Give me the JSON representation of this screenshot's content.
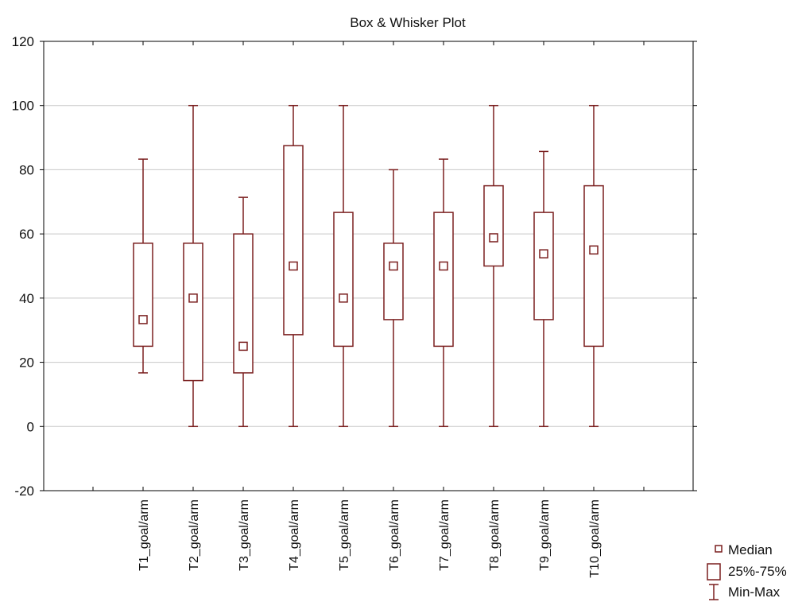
{
  "chart_data": {
    "type": "boxplot",
    "title": "Box & Whisker Plot",
    "xlabel": "",
    "ylabel": "",
    "ylim": [
      -20,
      120
    ],
    "yticks": [
      -20,
      0,
      20,
      40,
      60,
      80,
      100,
      120
    ],
    "grid": true,
    "legend_position": "bottom-right",
    "colors": {
      "box": "#7a1f1f",
      "grid": "#c8c8c8",
      "axis": "#000000"
    },
    "categories": [
      "T1_goal/arm",
      "T2_goal/arm",
      "T3_goal/arm",
      "T4_goal/arm",
      "T5_goal/arm",
      "T6_goal/arm",
      "T7_goal/arm",
      "T8_goal/arm",
      "T9_goal/arm",
      "T10_goal/arm"
    ],
    "series": [
      {
        "median": [
          33.3,
          40,
          25,
          50,
          40,
          50,
          50,
          58.8,
          53.8,
          55
        ],
        "q1": [
          25,
          14.3,
          16.7,
          28.6,
          25,
          33.3,
          25,
          50,
          33.3,
          25
        ],
        "q3": [
          57.1,
          57.1,
          60,
          87.5,
          66.7,
          57.1,
          66.7,
          75,
          66.7,
          75
        ],
        "min": [
          16.7,
          0,
          0,
          0,
          0,
          0,
          0,
          0,
          0,
          0
        ],
        "max": [
          83.3,
          100,
          71.4,
          100,
          100,
          80,
          83.3,
          100,
          85.7,
          100
        ]
      }
    ],
    "legend": [
      {
        "key": "median",
        "label": "Median"
      },
      {
        "key": "box",
        "label": "25%-75%"
      },
      {
        "key": "whisker",
        "label": "Min-Max"
      }
    ]
  }
}
